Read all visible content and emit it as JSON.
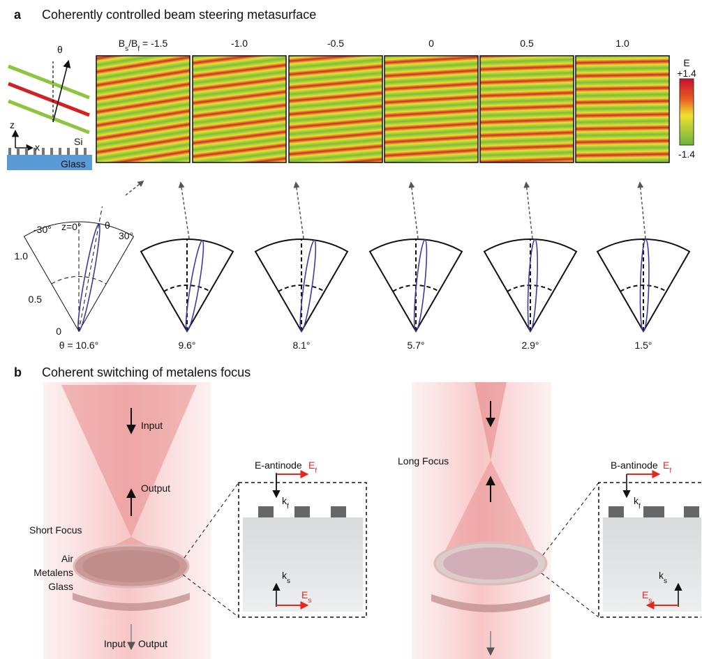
{
  "panel_a": {
    "letter": "a",
    "title": "Coherently controlled beam steering metasurface",
    "ratio": {
      "b": "B",
      "s": "s",
      "slash_b": "/B",
      "f": "f",
      "equals": " = "
    },
    "columns": [
      "-1.5",
      "-1.0",
      "-0.5",
      "0",
      "0.5",
      "1.0"
    ],
    "inset": {
      "theta": "θ",
      "z": "z",
      "x": "x",
      "si": "Si",
      "glass": "Glass"
    },
    "colorbar": {
      "label": "E",
      "max": "+1.4",
      "min": "-1.4"
    },
    "polar": {
      "left": "-30°",
      "center": "z=0°",
      "theta": "θ",
      "right": "30°",
      "r_ticks": [
        "1.0",
        "0.5",
        "0"
      ]
    },
    "theta_prefix": "θ = ",
    "angles": [
      "10.6°",
      "9.6°",
      "8.1°",
      "5.7°",
      "2.9°",
      "1.5°"
    ]
  },
  "panel_b": {
    "letter": "b",
    "title": "Coherent switching of metalens focus",
    "left": {
      "input_top": "Input",
      "output_top": "Output",
      "focus": "Short Focus",
      "air": "Air",
      "metalens": "Metalens",
      "glass": "Glass",
      "input_bottom": "Input",
      "output_bottom": "Output"
    },
    "left_inset": {
      "title": "E-antinode",
      "ef": [
        "E",
        "f"
      ],
      "kf": [
        "k",
        "f"
      ],
      "ks": [
        "k",
        "s"
      ],
      "es": [
        "E",
        "s"
      ]
    },
    "right": {
      "focus": "Long Focus"
    },
    "right_inset": {
      "title": "B-antinode",
      "ef": [
        "E",
        "f"
      ],
      "kf": [
        "k",
        "f"
      ],
      "ks": [
        "k",
        "s"
      ],
      "es": [
        "E",
        "s"
      ]
    }
  }
}
